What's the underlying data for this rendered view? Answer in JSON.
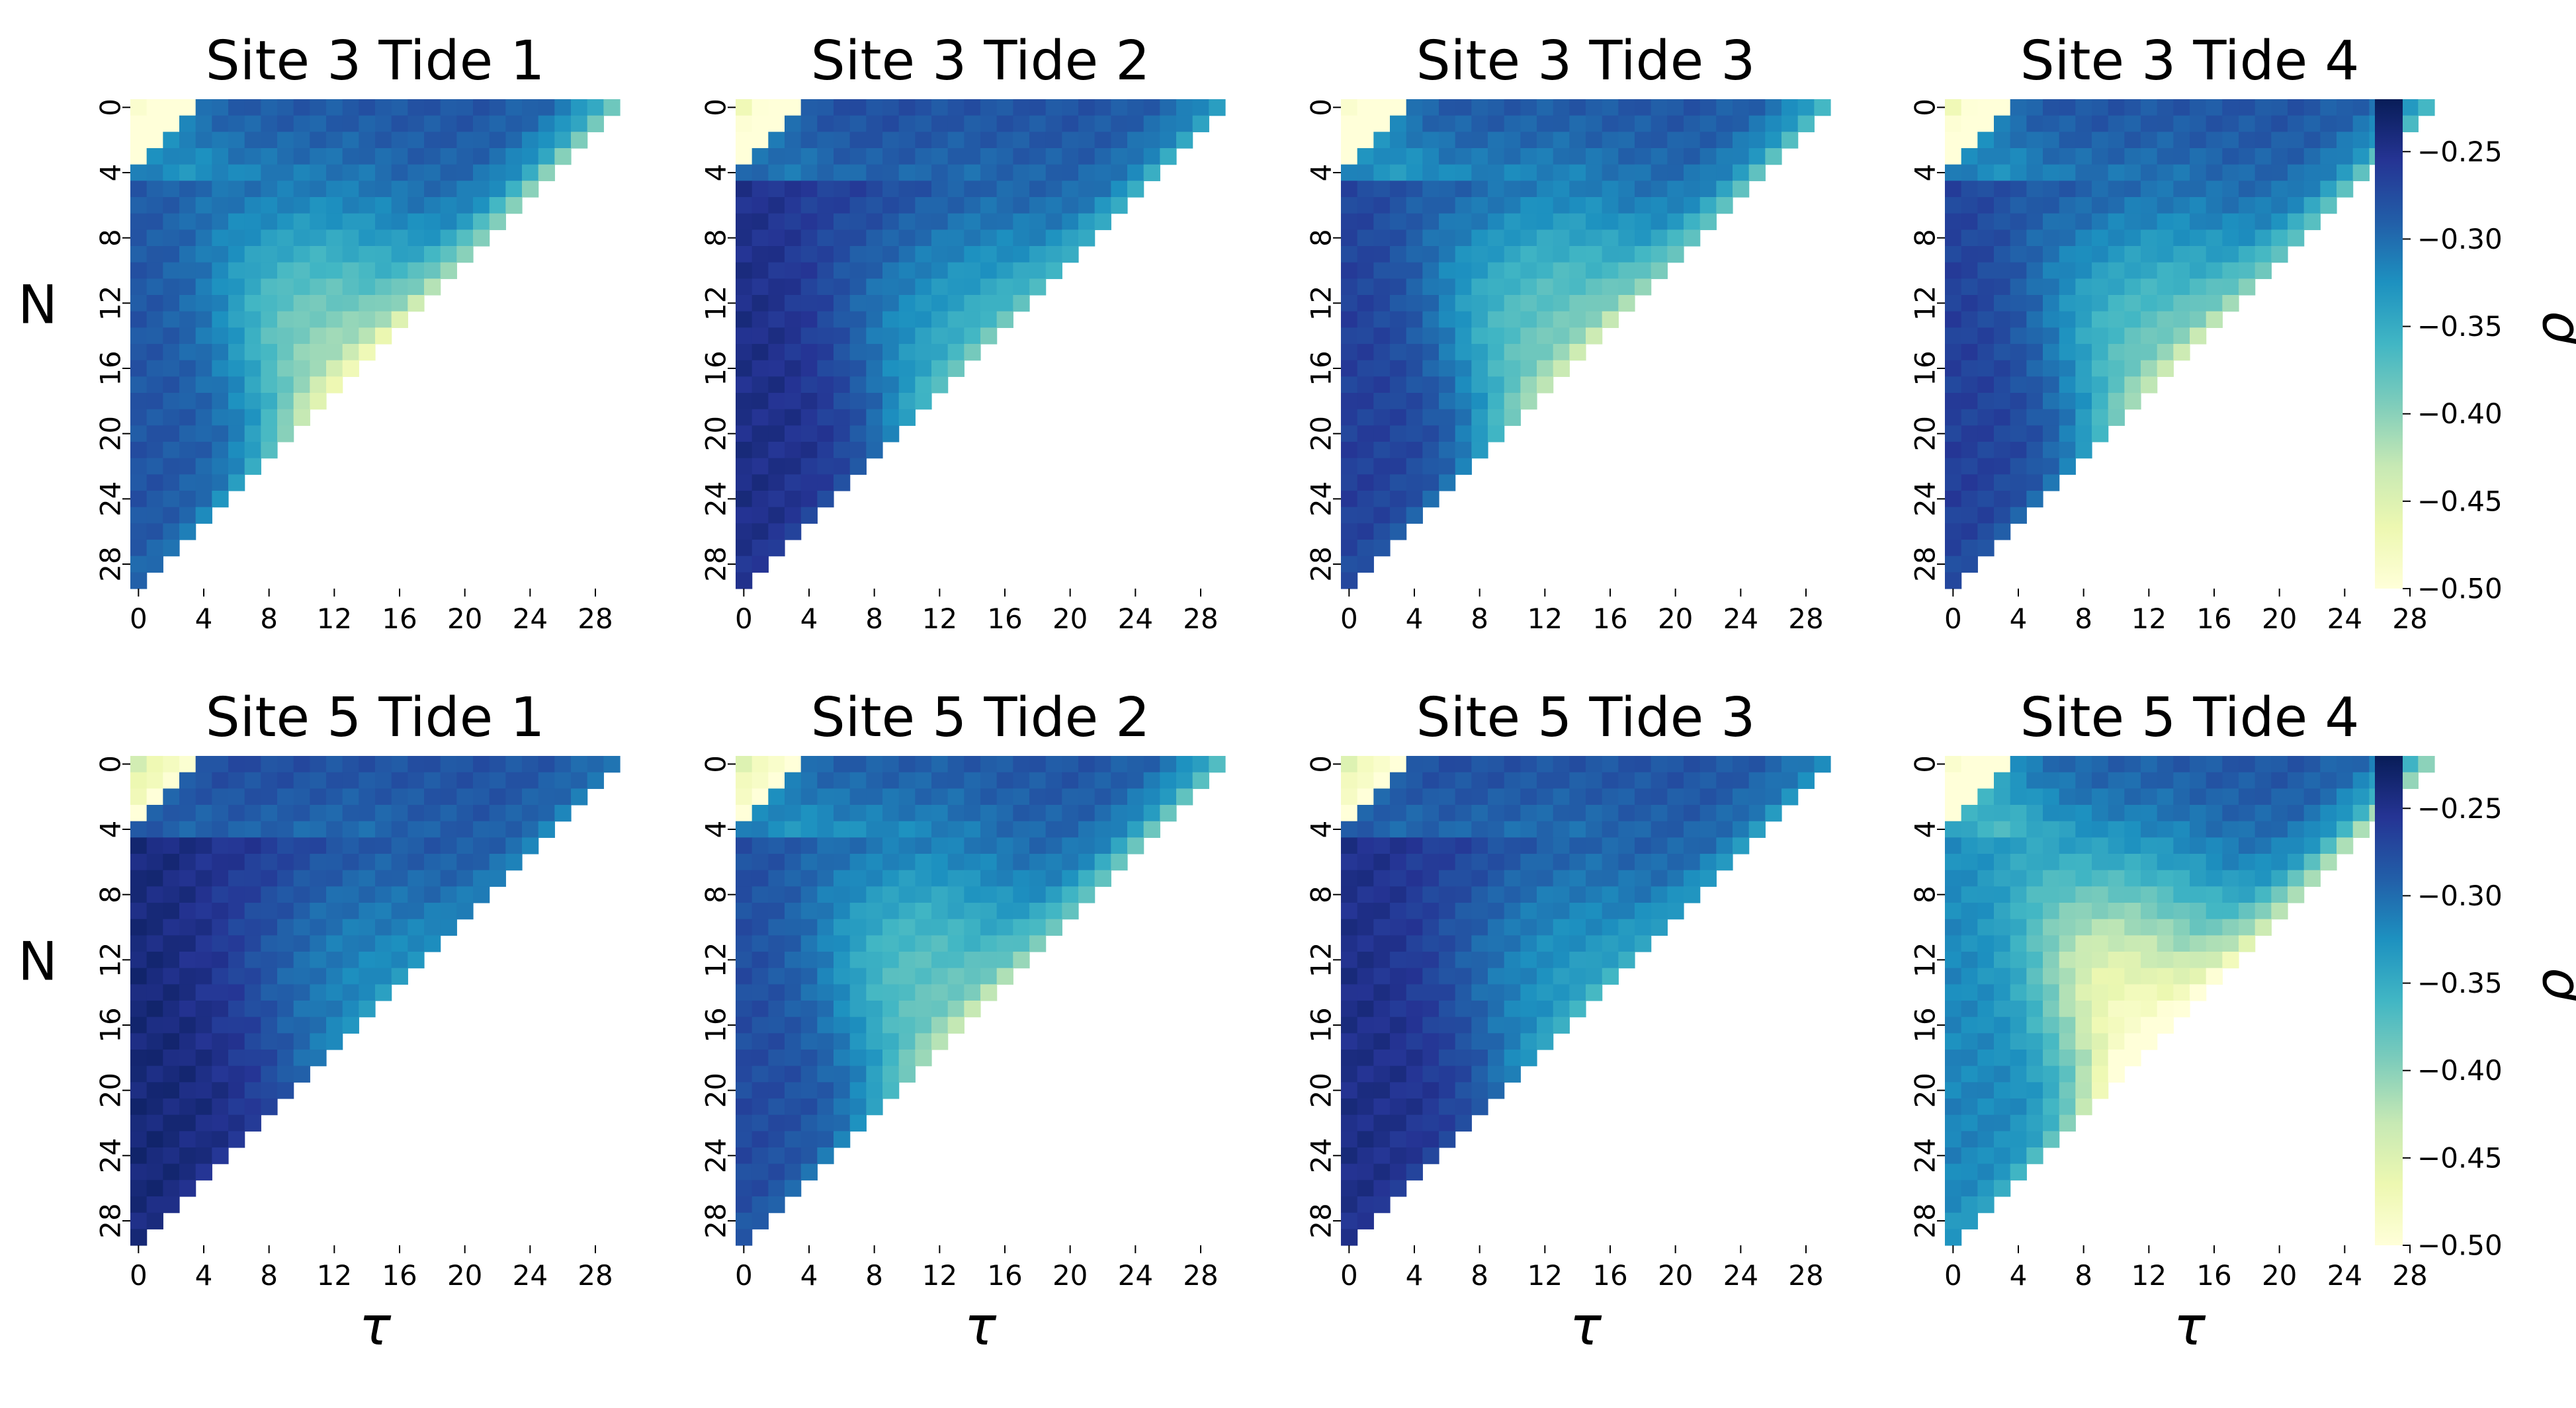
{
  "chart_data": [
    {
      "type": "heatmap",
      "title": "Site 3 Tide 1",
      "xlabel": "",
      "ylabel": "N",
      "x_ticks": [
        "0",
        "4",
        "8",
        "12",
        "16",
        "20",
        "24",
        "28"
      ],
      "y_ticks": [
        "0",
        "4",
        "8",
        "12",
        "16",
        "20",
        "24",
        "28"
      ],
      "grid_size": 30,
      "mask": "upper-triangle (tau + N <= 29)",
      "value_range": [
        -0.5,
        -0.22
      ],
      "colormap": "YlGnBu",
      "params": {
        "corner": -0.23,
        "edge": -0.3,
        "peak": -0.32,
        "peak_tau": 10,
        "peak_n": 13,
        "low": -0.44,
        "low_spread": 7,
        "ridge": -0.36
      }
    },
    {
      "type": "heatmap",
      "title": "Site 3 Tide 2",
      "xlabel": "",
      "ylabel": "",
      "x_ticks": [
        "0",
        "4",
        "8",
        "12",
        "16",
        "20",
        "24",
        "28"
      ],
      "y_ticks": [
        "0",
        "4",
        "8",
        "12",
        "16",
        "20",
        "24",
        "28"
      ],
      "grid_size": 30,
      "mask": "upper-triangle (tau + N <= 29)",
      "value_range": [
        -0.5,
        -0.22
      ],
      "colormap": "YlGnBu",
      "params": {
        "corner": -0.25,
        "edge": -0.36,
        "peak": -0.35,
        "peak_tau": 12,
        "peak_n": 13,
        "low": -0.48,
        "low_spread": 9,
        "ridge": -0.37
      }
    },
    {
      "type": "heatmap",
      "title": "Site 3 Tide 3",
      "xlabel": "",
      "ylabel": "",
      "x_ticks": [
        "0",
        "4",
        "8",
        "12",
        "16",
        "20",
        "24",
        "28"
      ],
      "y_ticks": [
        "0",
        "4",
        "8",
        "12",
        "16",
        "20",
        "24",
        "28"
      ],
      "grid_size": 30,
      "mask": "upper-triangle (tau + N <= 29)",
      "value_range": [
        -0.5,
        -0.22
      ],
      "colormap": "YlGnBu",
      "params": {
        "corner": -0.23,
        "edge": -0.33,
        "peak": -0.32,
        "peak_tau": 11,
        "peak_n": 12,
        "low": -0.46,
        "low_spread": 8,
        "ridge": -0.34
      }
    },
    {
      "type": "heatmap",
      "title": "Site 3 Tide 4",
      "xlabel": "",
      "ylabel": "",
      "x_ticks": [
        "0",
        "4",
        "8",
        "12",
        "16",
        "20",
        "24",
        "28"
      ],
      "y_ticks": [
        "0",
        "4",
        "8",
        "12",
        "16",
        "20",
        "24",
        "28"
      ],
      "grid_size": 30,
      "mask": "upper-triangle (tau + N <= 29)",
      "value_range": [
        -0.5,
        -0.22
      ],
      "colormap": "YlGnBu",
      "params": {
        "corner": -0.25,
        "edge": -0.33,
        "peak": -0.33,
        "peak_tau": 11,
        "peak_n": 13,
        "low": -0.46,
        "low_spread": 8,
        "ridge": -0.35
      }
    },
    {
      "type": "heatmap",
      "title": "Site 5 Tide 1",
      "xlabel": "τ",
      "ylabel": "N",
      "x_ticks": [
        "0",
        "4",
        "8",
        "12",
        "16",
        "20",
        "24",
        "28"
      ],
      "y_ticks": [
        "0",
        "4",
        "8",
        "12",
        "16",
        "20",
        "24",
        "28"
      ],
      "grid_size": 30,
      "mask": "upper-triangle (tau + N <= 29)",
      "value_range": [
        -0.5,
        -0.22
      ],
      "colormap": "YlGnBu",
      "params": {
        "corner": -0.28,
        "edge": -0.4,
        "peak": -0.36,
        "peak_tau": 11,
        "peak_n": 12,
        "low": -0.49,
        "low_spread": 10,
        "ridge": -0.4
      }
    },
    {
      "type": "heatmap",
      "title": "Site 5 Tide 2",
      "xlabel": "τ",
      "ylabel": "",
      "x_ticks": [
        "0",
        "4",
        "8",
        "12",
        "16",
        "20",
        "24",
        "28"
      ],
      "y_ticks": [
        "0",
        "4",
        "8",
        "12",
        "16",
        "20",
        "24",
        "28"
      ],
      "grid_size": 30,
      "mask": "upper-triangle (tau + N <= 29)",
      "value_range": [
        -0.5,
        -0.22
      ],
      "colormap": "YlGnBu",
      "params": {
        "corner": -0.27,
        "edge": -0.32,
        "peak": -0.31,
        "peak_tau": 9,
        "peak_n": 12,
        "low": -0.45,
        "low_spread": 8,
        "ridge": -0.37
      }
    },
    {
      "type": "heatmap",
      "title": "Site 5 Tide 3",
      "xlabel": "τ",
      "ylabel": "",
      "x_ticks": [
        "0",
        "4",
        "8",
        "12",
        "16",
        "20",
        "24",
        "28"
      ],
      "y_ticks": [
        "0",
        "4",
        "8",
        "12",
        "16",
        "20",
        "24",
        "28"
      ],
      "grid_size": 30,
      "mask": "upper-triangle (tau + N <= 29)",
      "value_range": [
        -0.5,
        -0.22
      ],
      "colormap": "YlGnBu",
      "params": {
        "corner": -0.27,
        "edge": -0.38,
        "peak": -0.36,
        "peak_tau": 11,
        "peak_n": 12,
        "low": -0.48,
        "low_spread": 9,
        "ridge": -0.4
      }
    },
    {
      "type": "heatmap",
      "title": "Site 5 Tide 4",
      "xlabel": "τ",
      "ylabel": "",
      "x_ticks": [
        "0",
        "4",
        "8",
        "12",
        "16",
        "20",
        "24",
        "28"
      ],
      "y_ticks": [
        "0",
        "4",
        "8",
        "12",
        "16",
        "20",
        "24",
        "28"
      ],
      "grid_size": 30,
      "mask": "upper-triangle (tau + N <= 29)",
      "value_range": [
        -0.5,
        -0.22
      ],
      "colormap": "YlGnBu",
      "params": {
        "corner": -0.23,
        "edge": -0.28,
        "peak": -0.28,
        "peak_tau": 10,
        "peak_n": 13,
        "low": -0.4,
        "low_spread": 6,
        "ridge": -0.31
      }
    }
  ],
  "colorbars": [
    {
      "label": "ρ",
      "min": -0.5,
      "max": -0.22,
      "ticks": [
        "−0.25",
        "−0.30",
        "−0.35",
        "−0.40",
        "−0.45",
        "−0.50"
      ],
      "tick_values": [
        -0.25,
        -0.3,
        -0.35,
        -0.4,
        -0.45,
        -0.5
      ]
    },
    {
      "label": "ρ",
      "min": -0.5,
      "max": -0.22,
      "ticks": [
        "−0.25",
        "−0.30",
        "−0.35",
        "−0.40",
        "−0.45",
        "−0.50"
      ],
      "tick_values": [
        -0.25,
        -0.3,
        -0.35,
        -0.4,
        -0.45,
        -0.5
      ]
    }
  ],
  "colors": {
    "colormap_stops": [
      "#ffffd9",
      "#edf8b1",
      "#c7e9b4",
      "#7fcdbb",
      "#41b6c4",
      "#1d91c0",
      "#225ea8",
      "#253494",
      "#081d58"
    ]
  }
}
